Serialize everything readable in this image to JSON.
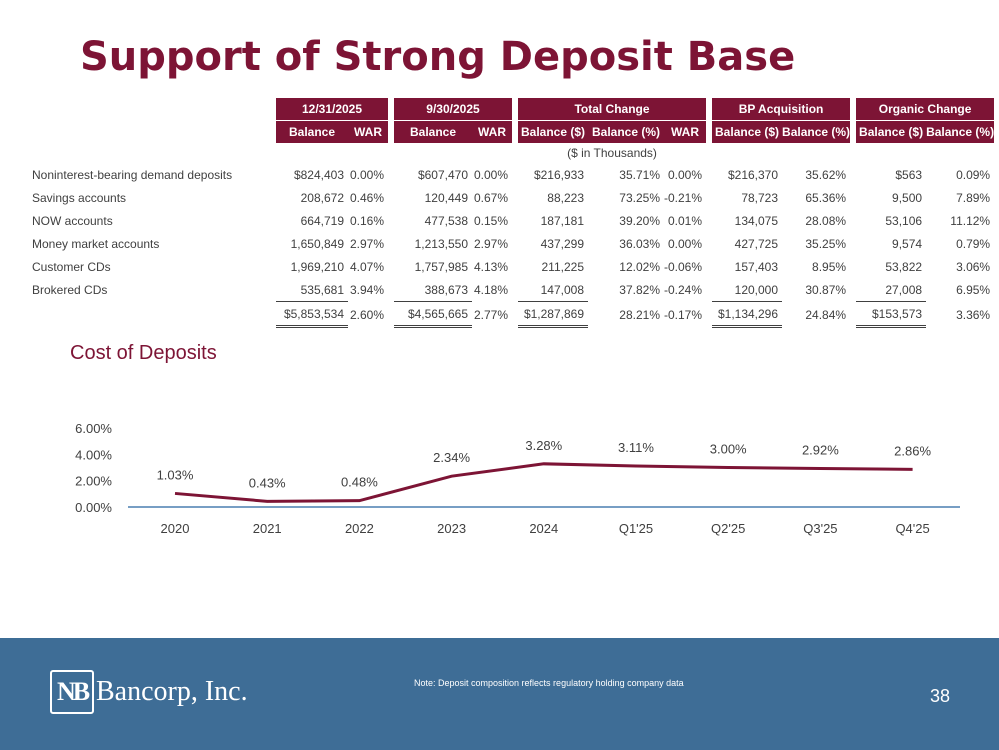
{
  "title": "Support of Strong Deposit Base",
  "table": {
    "groups": [
      "12/31/2025",
      "9/30/2025",
      "Total Change",
      "BP Acquisition",
      "Organic Change"
    ],
    "subheaders": {
      "g1": [
        "Balance",
        "WAR"
      ],
      "g2": [
        "Balance",
        "WAR"
      ],
      "g3": [
        "Balance ($)",
        "Balance (%)",
        "WAR"
      ],
      "g4": [
        "Balance ($)",
        "Balance (%)"
      ],
      "g5": [
        "Balance ($)",
        "Balance (%)"
      ]
    },
    "units": "($ in Thousands)",
    "rows": [
      {
        "label": "Noninterest-bearing demand deposits",
        "v": [
          "$824,403",
          "0.00%",
          "$607,470",
          "0.00%",
          "$216,933",
          "35.71%",
          "0.00%",
          "$216,370",
          "35.62%",
          "$563",
          "0.09%"
        ]
      },
      {
        "label": "Savings accounts",
        "v": [
          "208,672",
          "0.46%",
          "120,449",
          "0.67%",
          "88,223",
          "73.25%",
          "-0.21%",
          "78,723",
          "65.36%",
          "9,500",
          "7.89%"
        ]
      },
      {
        "label": "NOW accounts",
        "v": [
          "664,719",
          "0.16%",
          "477,538",
          "0.15%",
          "187,181",
          "39.20%",
          "0.01%",
          "134,075",
          "28.08%",
          "53,106",
          "11.12%"
        ]
      },
      {
        "label": "Money market accounts",
        "v": [
          "1,650,849",
          "2.97%",
          "1,213,550",
          "2.97%",
          "437,299",
          "36.03%",
          "0.00%",
          "427,725",
          "35.25%",
          "9,574",
          "0.79%"
        ]
      },
      {
        "label": "Customer CDs",
        "v": [
          "1,969,210",
          "4.07%",
          "1,757,985",
          "4.13%",
          "211,225",
          "12.02%",
          "-0.06%",
          "157,403",
          "8.95%",
          "53,822",
          "3.06%"
        ]
      },
      {
        "label": "Brokered CDs",
        "v": [
          "535,681",
          "3.94%",
          "388,673",
          "4.18%",
          "147,008",
          "37.82%",
          "-0.24%",
          "120,000",
          "30.87%",
          "27,008",
          "6.95%"
        ]
      }
    ],
    "total": [
      "$5,853,534",
      "2.60%",
      "$4,565,665",
      "2.77%",
      "$1,287,869",
      "28.21%",
      "-0.17%",
      "$1,134,296",
      "24.84%",
      "$153,573",
      "3.36%"
    ]
  },
  "chart_title": "Cost of Deposits",
  "chart_data": {
    "type": "line",
    "categories": [
      "2020",
      "2021",
      "2022",
      "2023",
      "2024",
      "Q1'25",
      "Q2'25",
      "Q3'25",
      "Q4'25"
    ],
    "values": [
      1.03,
      0.43,
      0.48,
      2.34,
      3.28,
      3.11,
      3.0,
      2.92,
      2.86
    ],
    "data_labels": [
      "1.03%",
      "0.43%",
      "0.48%",
      "2.34%",
      "3.28%",
      "3.11%",
      "3.00%",
      "2.92%",
      "2.86%"
    ],
    "y_ticks": [
      "0.00%",
      "2.00%",
      "4.00%",
      "6.00%"
    ],
    "ylim": [
      0,
      6
    ],
    "series_color": "#7d1435",
    "axis_color": "#4a7fb0"
  },
  "footer": {
    "logo_mark": "NB",
    "logo_text": "Bancorp, Inc.",
    "note": "Note: Deposit composition reflects regulatory holding company data",
    "page_number": "38"
  }
}
